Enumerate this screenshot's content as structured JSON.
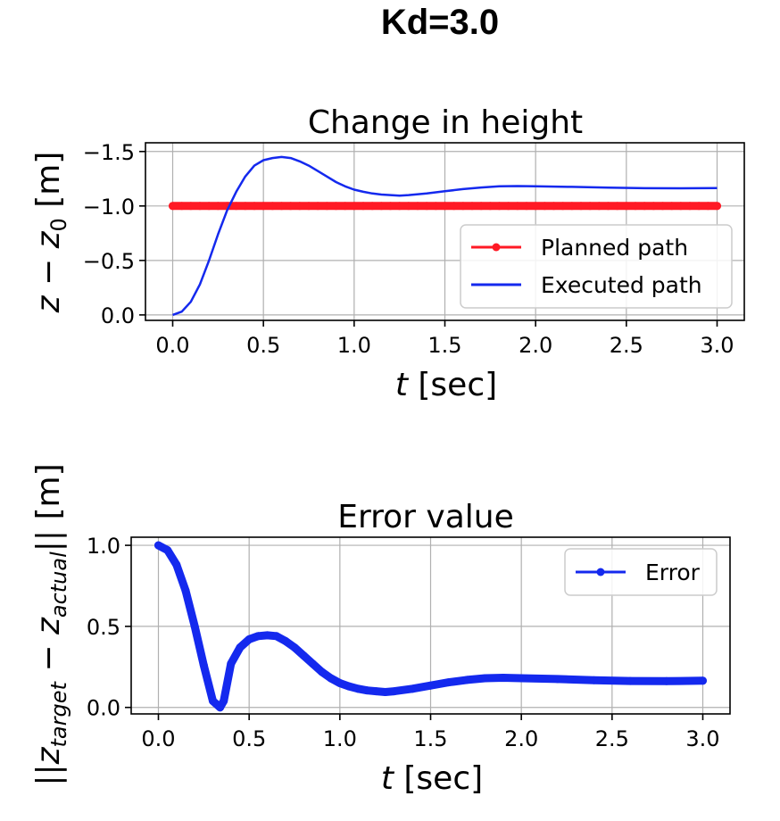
{
  "figure": {
    "suptitle": "Kd=3.0"
  },
  "colors": {
    "planned": "#ff1a25",
    "executed": "#1429ee",
    "error": "#1429ee"
  },
  "chart_data": [
    {
      "type": "line",
      "title": "Change in height",
      "xlabel_var": "t",
      "xlabel_unit": " [sec]",
      "ylabel_main": "z − z",
      "ylabel_sub": "0",
      "ylabel_unit": " [m]",
      "xlim": [
        -0.15,
        3.15
      ],
      "ylim": [
        0.05,
        -1.58
      ],
      "y_inverted": true,
      "grid": true,
      "legend_position": "lower-right",
      "xticks": [
        0.0,
        0.5,
        1.0,
        1.5,
        2.0,
        2.5,
        3.0
      ],
      "xtick_labels": [
        "0.0",
        "0.5",
        "1.0",
        "1.5",
        "2.0",
        "2.5",
        "3.0"
      ],
      "yticks": [
        -1.5,
        -1.0,
        -0.5,
        0.0
      ],
      "ytick_labels": [
        "−1.5",
        "−1.0",
        "−0.5",
        "0.0"
      ],
      "series": [
        {
          "name": "Planned path",
          "style": "line-dots",
          "x": [
            0.0,
            3.0
          ],
          "y": [
            -1.0,
            -1.0
          ]
        },
        {
          "name": "Executed path",
          "style": "line",
          "x": [
            0.0,
            0.05,
            0.1,
            0.15,
            0.2,
            0.25,
            0.3,
            0.35,
            0.4,
            0.45,
            0.5,
            0.55,
            0.6,
            0.65,
            0.7,
            0.75,
            0.8,
            0.85,
            0.9,
            0.95,
            1.0,
            1.05,
            1.1,
            1.15,
            1.2,
            1.25,
            1.3,
            1.4,
            1.5,
            1.6,
            1.7,
            1.8,
            1.9,
            2.0,
            2.2,
            2.4,
            2.6,
            2.8,
            3.0
          ],
          "y": [
            0.0,
            -0.03,
            -0.12,
            -0.28,
            -0.5,
            -0.74,
            -0.96,
            -1.13,
            -1.27,
            -1.37,
            -1.42,
            -1.44,
            -1.45,
            -1.44,
            -1.41,
            -1.37,
            -1.32,
            -1.27,
            -1.22,
            -1.18,
            -1.15,
            -1.13,
            -1.115,
            -1.105,
            -1.1,
            -1.095,
            -1.1,
            -1.115,
            -1.135,
            -1.155,
            -1.17,
            -1.18,
            -1.183,
            -1.18,
            -1.175,
            -1.168,
            -1.163,
            -1.162,
            -1.165
          ]
        }
      ]
    },
    {
      "type": "line",
      "title": "Error value",
      "xlabel_var": "t",
      "xlabel_unit": " [sec]",
      "ylabel_text": "||z",
      "ylabel_sub1": "target",
      "ylabel_mid": " − z",
      "ylabel_sub2": "actual",
      "ylabel_unit": "|| [m]",
      "xlim": [
        -0.15,
        3.15
      ],
      "ylim": [
        -0.04,
        1.05
      ],
      "grid": true,
      "legend_position": "top-right",
      "xticks": [
        0.0,
        0.5,
        1.0,
        1.5,
        2.0,
        2.5,
        3.0
      ],
      "xtick_labels": [
        "0.0",
        "0.5",
        "1.0",
        "1.5",
        "2.0",
        "2.5",
        "3.0"
      ],
      "yticks": [
        0.0,
        0.5,
        1.0
      ],
      "ytick_labels": [
        "0.0",
        "0.5",
        "1.0"
      ],
      "series": [
        {
          "name": "Error",
          "style": "thick-dots",
          "x": [
            0.0,
            0.05,
            0.1,
            0.15,
            0.2,
            0.25,
            0.3,
            0.34,
            0.36,
            0.4,
            0.45,
            0.5,
            0.55,
            0.6,
            0.65,
            0.7,
            0.75,
            0.8,
            0.85,
            0.9,
            0.95,
            1.0,
            1.05,
            1.1,
            1.15,
            1.2,
            1.25,
            1.3,
            1.4,
            1.5,
            1.6,
            1.7,
            1.8,
            1.9,
            2.0,
            2.2,
            2.4,
            2.6,
            2.8,
            3.0
          ],
          "y": [
            1.0,
            0.97,
            0.88,
            0.72,
            0.5,
            0.26,
            0.04,
            0.0,
            0.04,
            0.27,
            0.37,
            0.42,
            0.44,
            0.445,
            0.44,
            0.41,
            0.37,
            0.32,
            0.27,
            0.22,
            0.18,
            0.15,
            0.13,
            0.115,
            0.105,
            0.1,
            0.095,
            0.1,
            0.115,
            0.135,
            0.155,
            0.17,
            0.18,
            0.183,
            0.18,
            0.175,
            0.168,
            0.163,
            0.162,
            0.165
          ]
        }
      ]
    }
  ]
}
